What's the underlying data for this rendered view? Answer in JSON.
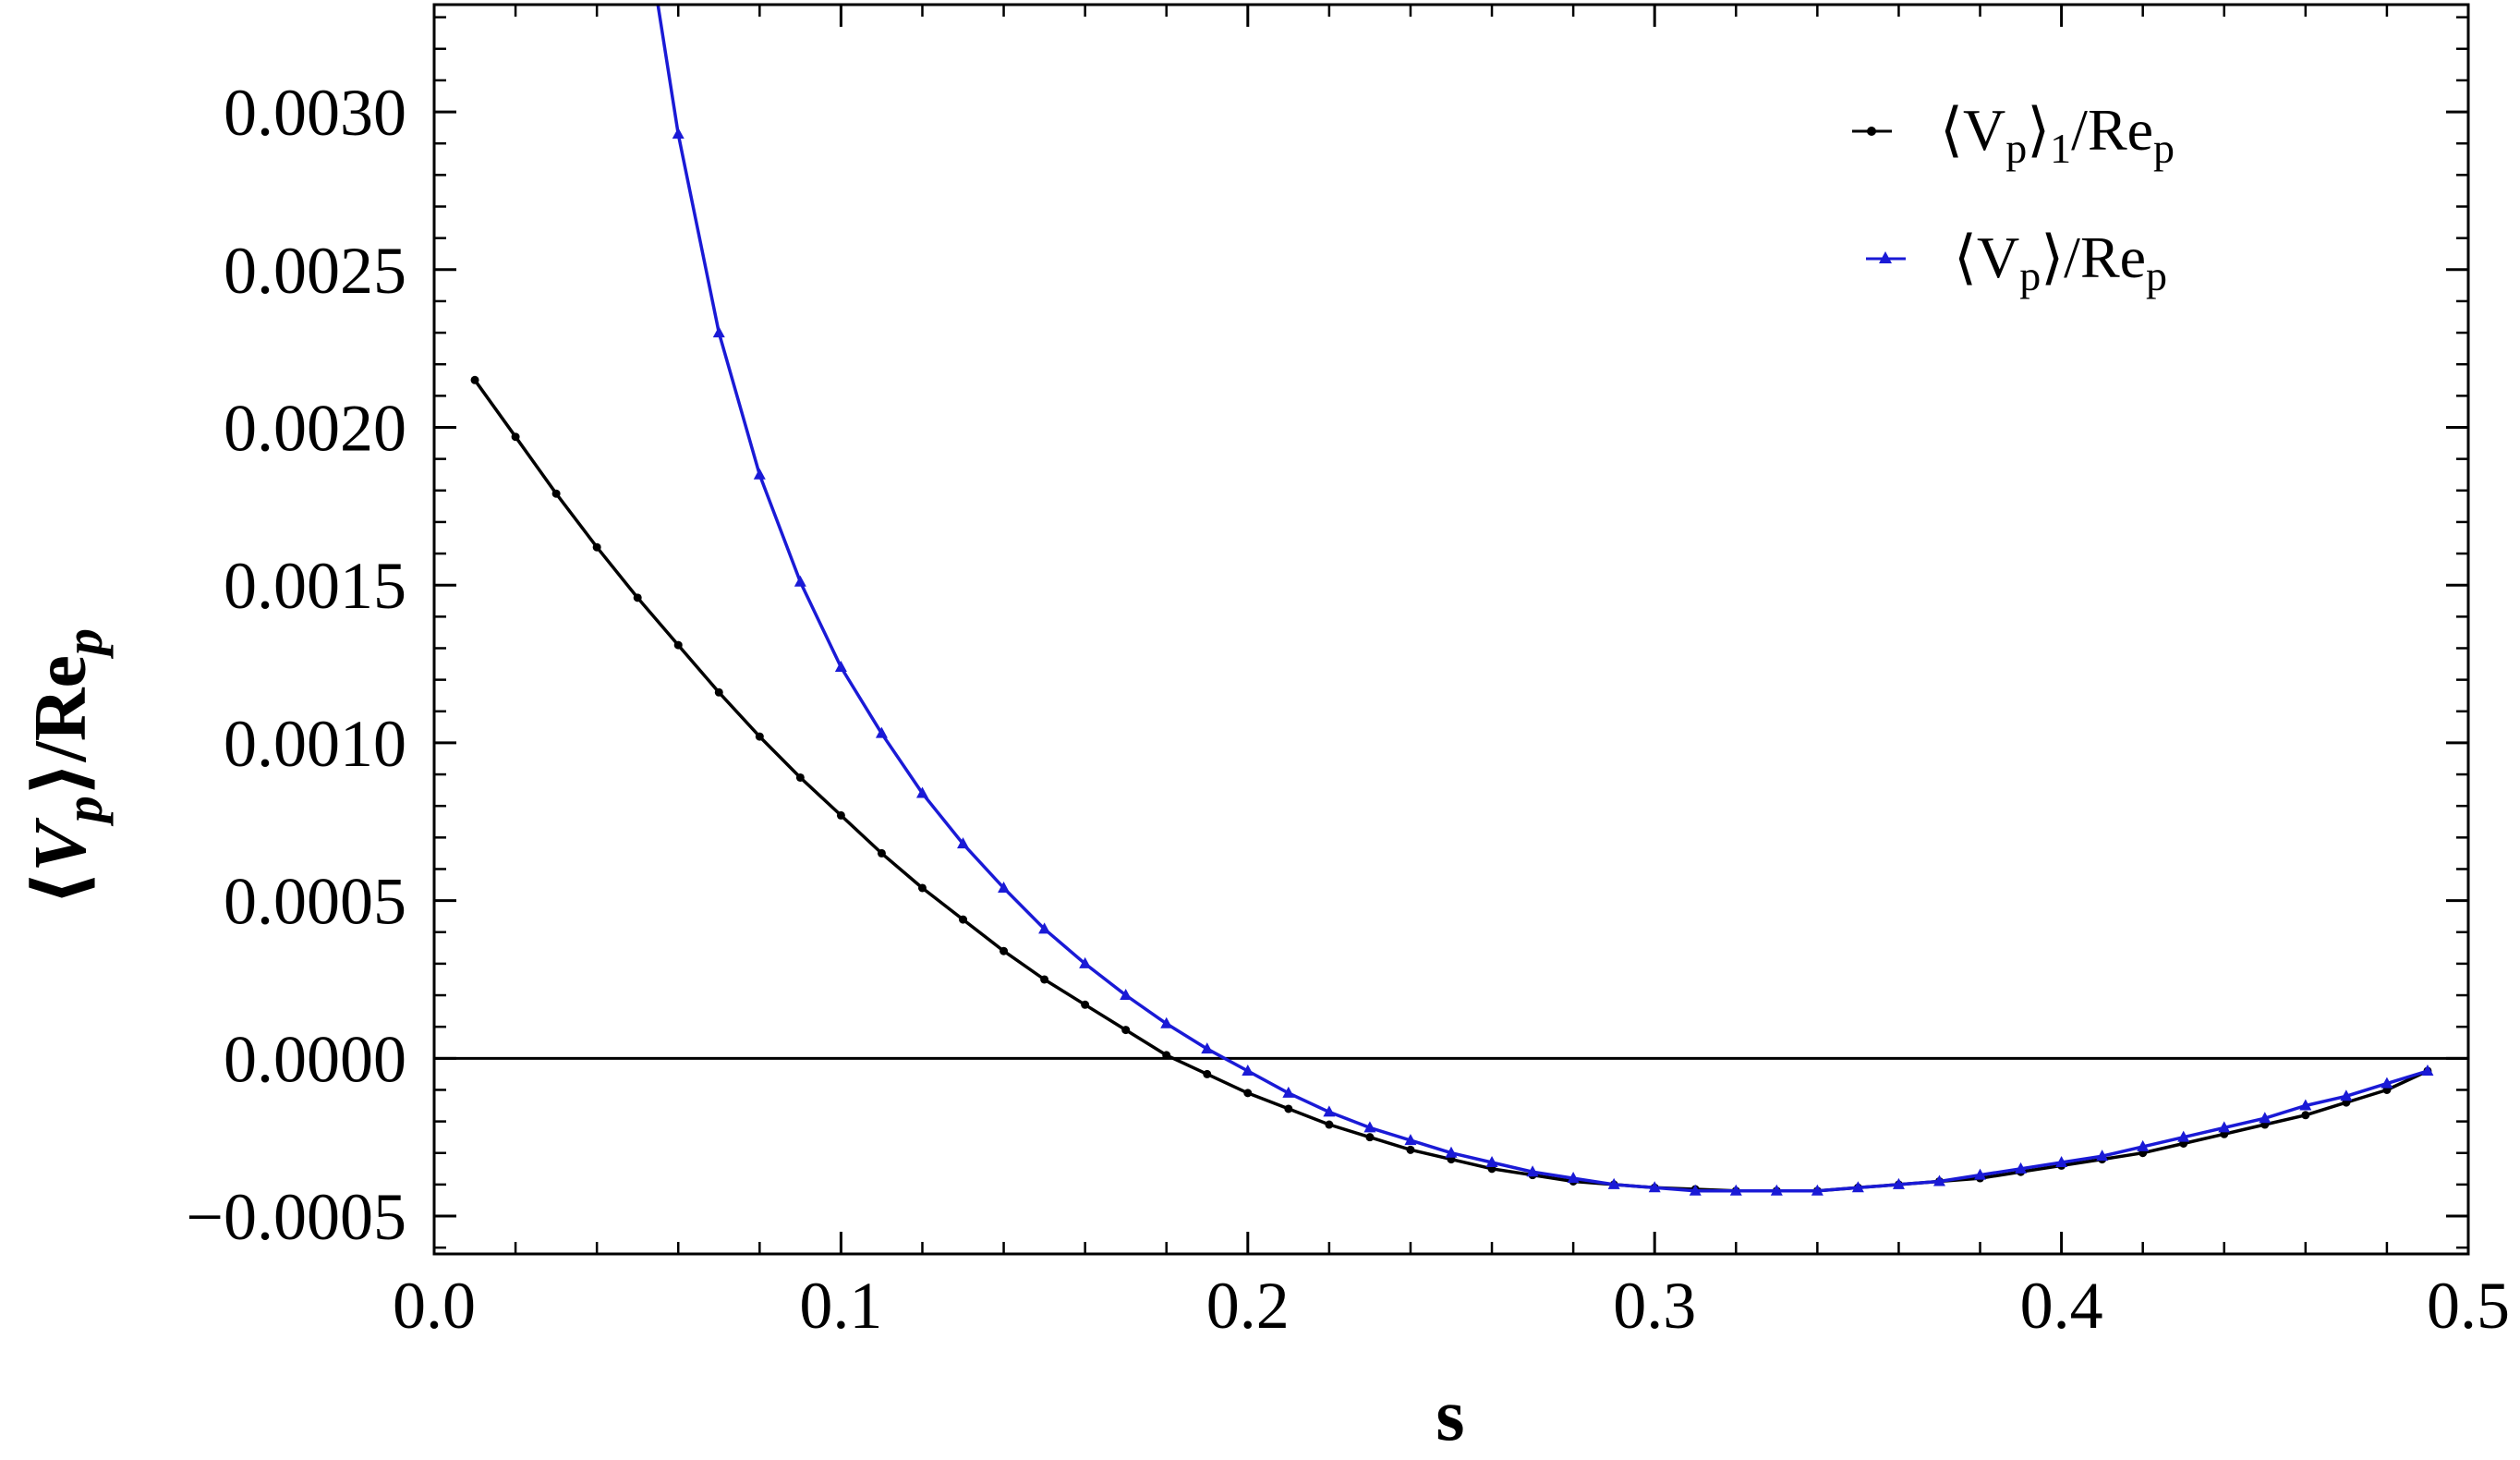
{
  "chart_data": {
    "type": "line",
    "title": "",
    "xlabel": "s",
    "ylabel": "⟨V_p⟩/Re_p",
    "ylabel_parts": {
      "open": "⟨",
      "V": "V",
      "p1": "p",
      "close": "⟩/",
      "Re": "Re",
      "p2": "p"
    },
    "xlim": [
      0.0,
      0.5
    ],
    "ylim": [
      -0.00062,
      0.00334
    ],
    "x_ticks": [
      0.0,
      0.1,
      0.2,
      0.3,
      0.4,
      0.5
    ],
    "x_tick_labels": [
      "0.0",
      "0.1",
      "0.2",
      "0.3",
      "0.4",
      "0.5"
    ],
    "y_ticks": [
      -0.0005,
      0.0,
      0.0005,
      0.001,
      0.0015,
      0.002,
      0.0025,
      0.003
    ],
    "y_tick_labels": [
      "−0.0005",
      "0.0000",
      "0.0005",
      "0.0010",
      "0.0015",
      "0.0020",
      "0.0025",
      "0.0030"
    ],
    "zero_line": true,
    "grid": false,
    "legend_position": "top-right",
    "series": [
      {
        "name": "⟨Vp⟩1/Rep",
        "legend_parts": {
          "open": "⟨V",
          "sub1": "p",
          "close": "⟩",
          "sub2": "1",
          "mid": "/Re",
          "sub3": "p"
        },
        "color": "#000000",
        "marker": "circle",
        "x": [
          0.01,
          0.02,
          0.03,
          0.04,
          0.05,
          0.06,
          0.07,
          0.08,
          0.09,
          0.1,
          0.11,
          0.12,
          0.13,
          0.14,
          0.15,
          0.16,
          0.17,
          0.18,
          0.19,
          0.2,
          0.21,
          0.22,
          0.23,
          0.24,
          0.25,
          0.26,
          0.27,
          0.28,
          0.29,
          0.3,
          0.31,
          0.32,
          0.33,
          0.34,
          0.35,
          0.36,
          0.37,
          0.38,
          0.39,
          0.4,
          0.41,
          0.42,
          0.43,
          0.44,
          0.45,
          0.46,
          0.47,
          0.48,
          0.49
        ],
        "y": [
          0.00215,
          0.00197,
          0.00179,
          0.00162,
          0.00146,
          0.00131,
          0.00116,
          0.00102,
          0.00089,
          0.00077,
          0.00065,
          0.00054,
          0.00044,
          0.00034,
          0.00025,
          0.00017,
          9e-05,
          1e-05,
          -5e-05,
          -0.00011,
          -0.00016,
          -0.00021,
          -0.00025,
          -0.00029,
          -0.00032,
          -0.00035,
          -0.00037,
          -0.00039,
          -0.0004,
          -0.00041,
          -0.000415,
          -0.00042,
          -0.00042,
          -0.00042,
          -0.00041,
          -0.0004,
          -0.00039,
          -0.00038,
          -0.00036,
          -0.00034,
          -0.00032,
          -0.0003,
          -0.00027,
          -0.00024,
          -0.00021,
          -0.00018,
          -0.00014,
          -0.0001,
          -4e-05
        ]
      },
      {
        "name": "⟨Vp⟩/Rep",
        "legend_parts": {
          "open": "⟨V",
          "sub1": "p",
          "close": "⟩/Re",
          "sub3": "p"
        },
        "color": "#1a1ad6",
        "marker": "triangle",
        "x": [
          0.055,
          0.06,
          0.07,
          0.08,
          0.09,
          0.1,
          0.11,
          0.12,
          0.13,
          0.14,
          0.15,
          0.16,
          0.17,
          0.18,
          0.19,
          0.2,
          0.21,
          0.22,
          0.23,
          0.24,
          0.25,
          0.26,
          0.27,
          0.28,
          0.29,
          0.3,
          0.31,
          0.32,
          0.33,
          0.34,
          0.35,
          0.36,
          0.37,
          0.38,
          0.39,
          0.4,
          0.41,
          0.42,
          0.43,
          0.44,
          0.45,
          0.46,
          0.47,
          0.48,
          0.49
        ],
        "y": [
          0.00334,
          0.00293,
          0.0023,
          0.00185,
          0.00151,
          0.00124,
          0.00103,
          0.00084,
          0.00068,
          0.00054,
          0.00041,
          0.0003,
          0.0002,
          0.00011,
          3e-05,
          -4e-05,
          -0.00011,
          -0.00017,
          -0.00022,
          -0.00026,
          -0.0003,
          -0.00033,
          -0.00036,
          -0.00038,
          -0.0004,
          -0.00041,
          -0.00042,
          -0.00042,
          -0.00042,
          -0.00042,
          -0.00041,
          -0.0004,
          -0.00039,
          -0.00037,
          -0.00035,
          -0.00033,
          -0.00031,
          -0.00028,
          -0.00025,
          -0.00022,
          -0.00019,
          -0.00015,
          -0.00012,
          -8e-05,
          -4e-05
        ],
        "markers_x": [
          0.06,
          0.07,
          0.08,
          0.09,
          0.1,
          0.11,
          0.12,
          0.13,
          0.14,
          0.15,
          0.16,
          0.17,
          0.18,
          0.19,
          0.2,
          0.21,
          0.22,
          0.23,
          0.24,
          0.25,
          0.26,
          0.27,
          0.28,
          0.29,
          0.3,
          0.31,
          0.32,
          0.33,
          0.34,
          0.35,
          0.36,
          0.37,
          0.38,
          0.39,
          0.4,
          0.41,
          0.42,
          0.43,
          0.44,
          0.45,
          0.46,
          0.47,
          0.48,
          0.49
        ]
      }
    ]
  }
}
